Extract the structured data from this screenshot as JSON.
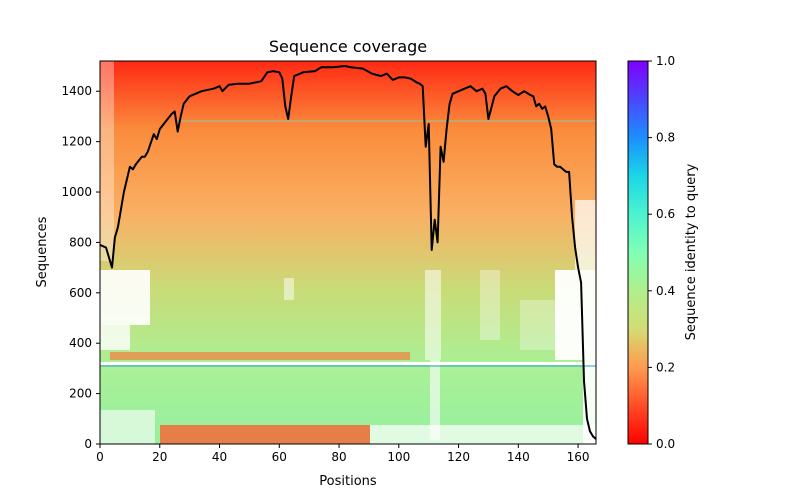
{
  "chart_data": {
    "type": "heatmap",
    "title": "Sequence coverage",
    "xlabel": "Positions",
    "ylabel": "Sequences",
    "xlim": [
      0,
      166
    ],
    "ylim": [
      0,
      1520
    ],
    "xticks": [
      0,
      20,
      40,
      60,
      80,
      100,
      120,
      140,
      160
    ],
    "yticks": [
      0,
      200,
      400,
      600,
      800,
      1000,
      1200,
      1400
    ],
    "colorbar": {
      "label": "Sequence identity to query",
      "range": [
        0,
        1
      ],
      "ticks": [
        0.0,
        0.2,
        0.4,
        0.6,
        0.8,
        1.0
      ],
      "tick_labels": [
        "0.0",
        "0.2",
        "0.4",
        "0.6",
        "0.8",
        "1.0"
      ],
      "colormap": "rainbow_r"
    },
    "coverage_line": {
      "name": "coverage",
      "color": "#000000",
      "x": [
        0,
        2,
        4,
        5,
        6,
        8,
        10,
        11,
        12,
        14,
        15,
        16,
        18,
        19,
        20,
        22,
        24,
        25,
        26,
        27,
        28,
        30,
        34,
        38,
        40,
        41,
        43,
        46,
        50,
        54,
        56,
        58,
        60,
        61,
        62,
        63,
        64,
        65,
        68,
        72,
        74,
        78,
        82,
        84,
        88,
        91,
        94,
        96,
        98,
        100,
        102,
        104,
        106,
        107,
        108,
        109,
        110,
        111,
        112,
        113,
        114,
        115,
        116,
        117,
        118,
        120,
        122,
        124,
        126,
        128,
        129,
        130,
        132,
        134,
        136,
        138,
        140,
        142,
        144,
        145,
        146,
        147,
        148,
        149,
        150,
        151,
        152,
        153,
        154,
        156,
        157,
        158,
        159,
        160,
        161,
        162,
        163,
        164,
        165,
        166
      ],
      "y": [
        790,
        780,
        700,
        820,
        860,
        1000,
        1100,
        1090,
        1110,
        1140,
        1140,
        1160,
        1230,
        1210,
        1250,
        1280,
        1310,
        1320,
        1240,
        1300,
        1350,
        1380,
        1400,
        1410,
        1420,
        1400,
        1425,
        1430,
        1430,
        1440,
        1475,
        1480,
        1475,
        1450,
        1340,
        1290,
        1380,
        1460,
        1475,
        1480,
        1495,
        1495,
        1500,
        1495,
        1490,
        1470,
        1460,
        1470,
        1445,
        1455,
        1455,
        1450,
        1435,
        1430,
        1420,
        1180,
        1270,
        770,
        890,
        800,
        1180,
        1120,
        1250,
        1350,
        1390,
        1400,
        1410,
        1420,
        1400,
        1410,
        1390,
        1290,
        1380,
        1410,
        1420,
        1400,
        1385,
        1400,
        1385,
        1380,
        1340,
        1350,
        1330,
        1340,
        1300,
        1250,
        1110,
        1100,
        1100,
        1080,
        1080,
        900,
        780,
        700,
        640,
        250,
        100,
        50,
        30,
        20
      ]
    }
  }
}
